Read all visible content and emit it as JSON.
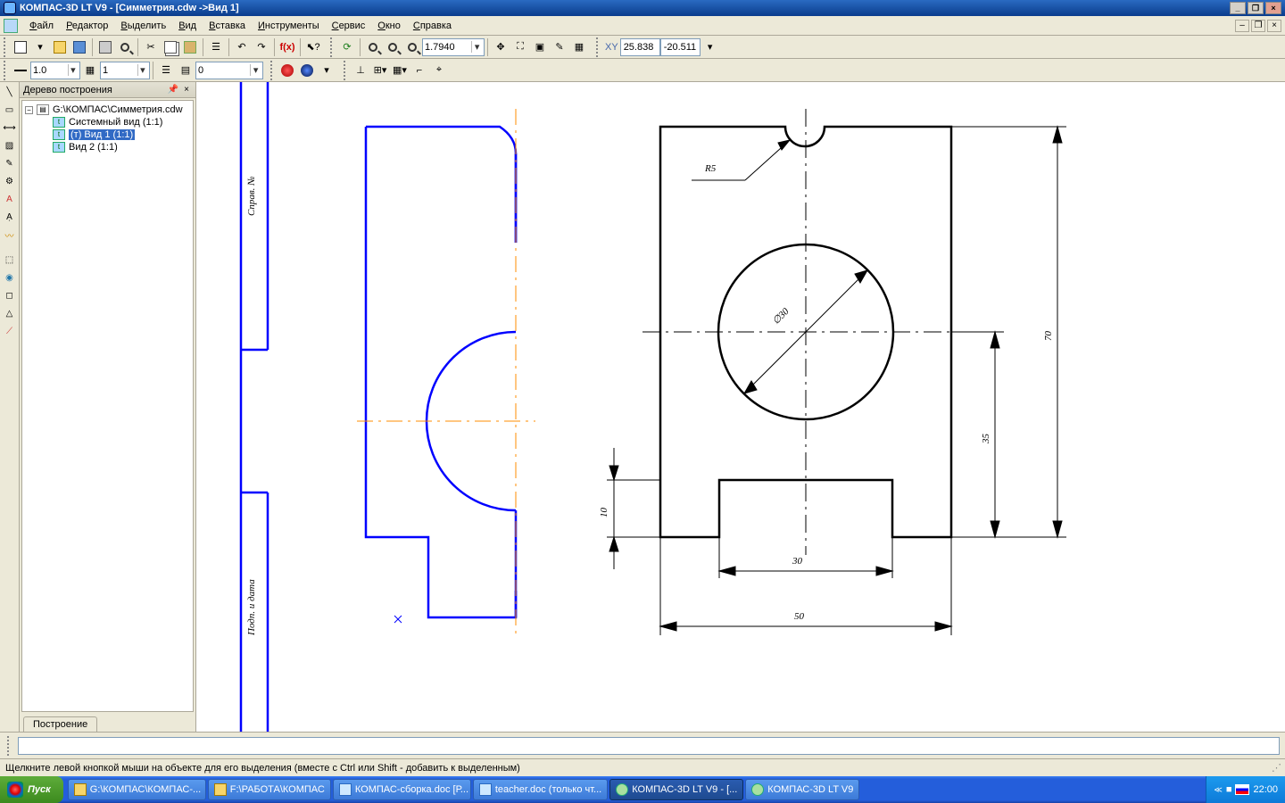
{
  "app": {
    "title": "КОМПАС-3D LT V9 - [Симметрия.cdw ->Вид 1]"
  },
  "menu": [
    "Файл",
    "Редактор",
    "Выделить",
    "Вид",
    "Вставка",
    "Инструменты",
    "Сервис",
    "Окно",
    "Справка"
  ],
  "toolbar1": {
    "zoom_value": "1.7940",
    "coord_label": "XY",
    "coord_x": "25.838",
    "coord_y": "-20.511"
  },
  "toolbar2": {
    "combo1": "1.0",
    "combo2": "1",
    "combo3": "0"
  },
  "tree": {
    "title": "Дерево построения",
    "root": "G:\\КОМПАС\\Симметрия.cdw",
    "items": [
      {
        "label": "Системный вид (1:1)",
        "selected": false
      },
      {
        "label": "(т) Вид 1 (1:1)",
        "selected": true
      },
      {
        "label": "Вид 2 (1:1)",
        "selected": false
      }
    ],
    "tab": "Построение"
  },
  "drawing": {
    "left_part": {
      "stroke": "#0000ff",
      "axis_color": "#ff8c00",
      "vtext_top": "Справ. №",
      "vtext_bottom": "Подп. и дата"
    },
    "right_part": {
      "stroke": "#000000",
      "labels": {
        "radius": "R5",
        "diameter": "∅30",
        "dim_70": "70",
        "dim_35": "35",
        "dim_10": "10",
        "dim_30": "30",
        "dim_50": "50"
      }
    },
    "font_size_dim": 22
  },
  "status": {
    "hint": "Щелкните левой кнопкой мыши на объекте для его выделения (вместе с Ctrl или Shift - добавить к выделенным)"
  },
  "taskbar": {
    "start": "Пуск",
    "tasks": [
      {
        "label": "G:\\КОМПАС\\КОМПАС-...",
        "type": "folder"
      },
      {
        "label": "F:\\РАБОТА\\КОМПАС",
        "type": "folder"
      },
      {
        "label": "КОМПАС-сборка.doc [Р...",
        "type": "doc"
      },
      {
        "label": "teacher.doc (только чт...",
        "type": "doc"
      },
      {
        "label": "КОМПАС-3D LT V9 - [...",
        "type": "app",
        "active": true
      },
      {
        "label": "КОМПАС-3D LT V9",
        "type": "app"
      }
    ],
    "time": "22:00"
  }
}
